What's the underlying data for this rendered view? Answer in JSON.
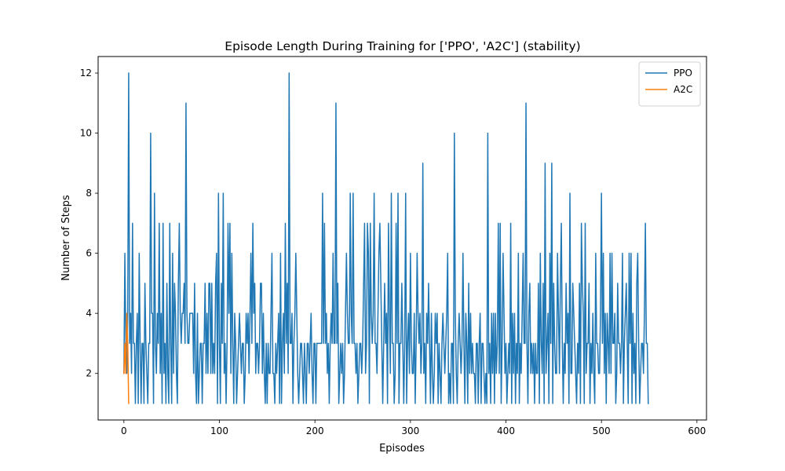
{
  "chart_data": {
    "type": "line",
    "title": "Episode Length During Training for ['PPO', 'A2C'] (stability)",
    "xlabel": "Episodes",
    "ylabel": "Number of Steps",
    "xlim": [
      -27,
      610
    ],
    "ylim": [
      0.45,
      12.55
    ],
    "xticks": [
      0,
      100,
      200,
      300,
      400,
      500,
      600
    ],
    "yticks": [
      2,
      4,
      6,
      8,
      10,
      12
    ],
    "grid": false,
    "legend_position": "top-right",
    "series": [
      {
        "name": "PPO",
        "color": "#1f77b4",
        "x_start": 0,
        "values": [
          2,
          6,
          3,
          2,
          4,
          12,
          3,
          4,
          2,
          7,
          3,
          3,
          1,
          3,
          4,
          1,
          6,
          3,
          1,
          3,
          3,
          1,
          5,
          3,
          2,
          1,
          3,
          3,
          10,
          4,
          4,
          1,
          8,
          3,
          2,
          4,
          3,
          7,
          2,
          4,
          1,
          7,
          2,
          3,
          1,
          5,
          2,
          1,
          7,
          3,
          1,
          6,
          2,
          5,
          4,
          2,
          1,
          5,
          7,
          4,
          3,
          4,
          4,
          5,
          3,
          11,
          4,
          3,
          3,
          4,
          4,
          4,
          4,
          2,
          5,
          2,
          1,
          4,
          1,
          2,
          3,
          3,
          1,
          3,
          3,
          5,
          2,
          4,
          2,
          5,
          5,
          2,
          5,
          2,
          3,
          2,
          5,
          6,
          1,
          8,
          3,
          1,
          5,
          3,
          8,
          2,
          3,
          1,
          3,
          7,
          4,
          7,
          2,
          6,
          3,
          1,
          4,
          3,
          1,
          2,
          3,
          4,
          3,
          2,
          3,
          3,
          1,
          2,
          4,
          3,
          4,
          2,
          4,
          6,
          3,
          7,
          4,
          5,
          2,
          3,
          3,
          2,
          3,
          5,
          5,
          2,
          4,
          2,
          1,
          3,
          1,
          3,
          2,
          2,
          4,
          6,
          2,
          2,
          1,
          3,
          2,
          3,
          4,
          1,
          6,
          1,
          3,
          4,
          2,
          7,
          3,
          5,
          2,
          12,
          3,
          3,
          4,
          1,
          3,
          4,
          6,
          4,
          2,
          1,
          2,
          3,
          3,
          2,
          1,
          3,
          2,
          1,
          3,
          3,
          2,
          3,
          4,
          2,
          1,
          3,
          3,
          1,
          3,
          3,
          3,
          3,
          3,
          3,
          8,
          3,
          7,
          3,
          4,
          2,
          3,
          1,
          3,
          4,
          3,
          6,
          3,
          3,
          11,
          3,
          5,
          1,
          2,
          3,
          2,
          3,
          1,
          2,
          4,
          6,
          4,
          3,
          3,
          8,
          4,
          3,
          8,
          3,
          3,
          2,
          3,
          1,
          2,
          3,
          3,
          2,
          3,
          5,
          7,
          2,
          3,
          7,
          6,
          1,
          7,
          4,
          3,
          4,
          8,
          3,
          3,
          2,
          4,
          6,
          7,
          5,
          3,
          1,
          3,
          5,
          3,
          4,
          1,
          7,
          4,
          2,
          8,
          3,
          3,
          1,
          2,
          7,
          3,
          8,
          1,
          3,
          3,
          5,
          3,
          1,
          3,
          8,
          1,
          3,
          4,
          2,
          6,
          3,
          2,
          2,
          4,
          1,
          3,
          6,
          4,
          3,
          4,
          2,
          3,
          9,
          2,
          3,
          1,
          4,
          3,
          5,
          3,
          1,
          4,
          2,
          1,
          2,
          4,
          3,
          4,
          1,
          3,
          2,
          1,
          3,
          4,
          3,
          2,
          3,
          4,
          6,
          1,
          2,
          1,
          3,
          3,
          1,
          10,
          4,
          2,
          1,
          3,
          4,
          3,
          2,
          3,
          6,
          3,
          1,
          4,
          3,
          1,
          5,
          2,
          4,
          2,
          3,
          2,
          2,
          1,
          3,
          3,
          1,
          3,
          4,
          1,
          3,
          3,
          2,
          1,
          2,
          1,
          10,
          2,
          3,
          1,
          4,
          2,
          4,
          1,
          4,
          2,
          3,
          7,
          2,
          7,
          1,
          3,
          6,
          4,
          2,
          3,
          1,
          2,
          3,
          2,
          7,
          1,
          4,
          2,
          4,
          1,
          3,
          2,
          6,
          1,
          3,
          2,
          4,
          6,
          3,
          3,
          11,
          3,
          1,
          4,
          5,
          2,
          3,
          2,
          3,
          1,
          3,
          2,
          2,
          5,
          1,
          6,
          3,
          2,
          5,
          1,
          9,
          2,
          3,
          4,
          1,
          6,
          3,
          9,
          1,
          5,
          3,
          2,
          2,
          6,
          4,
          2,
          5,
          7,
          3,
          1,
          3,
          2,
          5,
          3,
          4,
          1,
          8,
          2,
          2,
          5,
          4,
          3,
          2,
          1,
          3,
          2,
          5,
          1,
          7,
          5,
          4,
          1,
          7,
          2,
          3,
          3,
          5,
          1,
          3,
          2,
          4,
          2,
          1,
          6,
          3,
          3,
          2,
          2,
          4,
          8,
          3,
          6,
          2,
          4,
          1,
          4,
          3,
          2,
          6,
          2,
          6,
          3,
          3,
          4,
          1,
          2,
          5,
          3,
          3,
          2,
          3,
          6,
          1,
          3,
          4,
          5,
          3,
          1,
          6,
          3,
          6,
          1,
          4,
          2,
          3,
          1,
          5,
          6,
          3,
          1,
          2,
          3,
          3,
          2,
          4,
          7,
          3,
          3,
          1
        ]
      },
      {
        "name": "A2C",
        "color": "#ff7f0e",
        "x_start": 0,
        "values": [
          2,
          3,
          2,
          4,
          3,
          1
        ]
      }
    ]
  }
}
